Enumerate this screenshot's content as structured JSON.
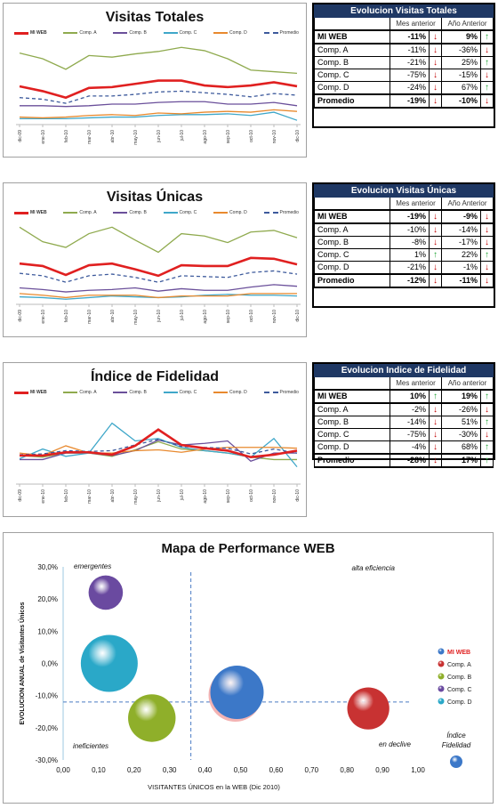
{
  "months": [
    "dic-09",
    "ene-10",
    "feb-10",
    "mar-10",
    "abr-10",
    "may-10",
    "jun-10",
    "jul-10",
    "ago-10",
    "sep-10",
    "oct-10",
    "nov-10",
    "dic-10"
  ],
  "legend_names": [
    "MI WEB",
    "Comp. A",
    "Comp. B",
    "Comp. C",
    "Comp. D",
    "Promedio"
  ],
  "series_colors": {
    "MI WEB": "#e02020",
    "Comp. A": "#8faa4e",
    "Comp. B": "#6a4f9a",
    "Comp. C": "#3fa7c9",
    "Comp. D": "#e8892e",
    "Promedio": "#3d5a9c"
  },
  "chart_data": [
    {
      "type": "line",
      "title": "Visitas Totales",
      "x": [
        "dic-09",
        "ene-10",
        "feb-10",
        "mar-10",
        "abr-10",
        "may-10",
        "jun-10",
        "jul-10",
        "ago-10",
        "sep-10",
        "oct-10",
        "nov-10",
        "dic-10"
      ],
      "ylim": [
        0,
        100
      ],
      "series": [
        {
          "name": "MI WEB",
          "values": [
            44,
            38,
            30,
            42,
            43,
            47,
            51,
            51,
            45,
            43,
            45,
            49,
            44
          ]
        },
        {
          "name": "Comp. A",
          "values": [
            85,
            78,
            65,
            82,
            80,
            84,
            87,
            92,
            88,
            78,
            64,
            62,
            60
          ]
        },
        {
          "name": "Comp. B",
          "values": [
            20,
            20,
            19,
            20,
            22,
            22,
            24,
            25,
            25,
            22,
            22,
            24,
            20
          ]
        },
        {
          "name": "Comp. C",
          "values": [
            4,
            4,
            4,
            5,
            6,
            6,
            8,
            9,
            9,
            10,
            8,
            12,
            2
          ]
        },
        {
          "name": "Comp. D",
          "values": [
            6,
            5,
            6,
            8,
            9,
            8,
            11,
            10,
            12,
            13,
            12,
            15,
            13
          ]
        },
        {
          "name": "Promedio",
          "values": [
            30,
            28,
            23,
            32,
            32,
            34,
            37,
            38,
            36,
            34,
            31,
            35,
            33
          ]
        }
      ]
    },
    {
      "type": "line",
      "title": "Visitas Únicas",
      "x": [
        "dic-09",
        "ene-10",
        "feb-10",
        "mar-10",
        "abr-10",
        "may-10",
        "jun-10",
        "jul-10",
        "ago-10",
        "sep-10",
        "oct-10",
        "nov-10",
        "dic-10"
      ],
      "ylim": [
        0,
        100
      ],
      "series": [
        {
          "name": "MI WEB",
          "values": [
            47,
            44,
            33,
            45,
            47,
            40,
            32,
            45,
            44,
            44,
            54,
            53,
            46
          ]
        },
        {
          "name": "Comp. A",
          "values": [
            92,
            74,
            67,
            84,
            92,
            76,
            61,
            84,
            81,
            73,
            86,
            88,
            79
          ]
        },
        {
          "name": "Comp. B",
          "values": [
            17,
            15,
            12,
            14,
            15,
            17,
            13,
            16,
            14,
            14,
            18,
            21,
            19
          ]
        },
        {
          "name": "Comp. C",
          "values": [
            6,
            5,
            3,
            5,
            7,
            6,
            5,
            6,
            8,
            9,
            8,
            8,
            7
          ]
        },
        {
          "name": "Comp. D",
          "values": [
            10,
            8,
            5,
            8,
            8,
            8,
            5,
            7,
            7,
            7,
            10,
            10,
            10
          ]
        },
        {
          "name": "Promedio",
          "values": [
            35,
            32,
            24,
            32,
            34,
            30,
            24,
            32,
            31,
            30,
            36,
            38,
            34
          ]
        }
      ]
    },
    {
      "type": "line",
      "title": "Índice de Fidelidad",
      "x": [
        "dic-09",
        "ene-10",
        "feb-10",
        "mar-10",
        "abr-10",
        "may-10",
        "jun-10",
        "jul-10",
        "ago-10",
        "sep-10",
        "oct-10",
        "nov-10",
        "dic-10"
      ],
      "ylim": [
        0,
        100
      ],
      "series": [
        {
          "name": "MI WEB",
          "values": [
            32,
            32,
            36,
            36,
            33,
            44,
            64,
            45,
            41,
            38,
            30,
            33,
            38
          ]
        },
        {
          "name": "Comp. A",
          "values": [
            32,
            30,
            35,
            35,
            31,
            39,
            49,
            40,
            38,
            35,
            30,
            27,
            27
          ]
        },
        {
          "name": "Comp. B",
          "values": [
            27,
            27,
            35,
            35,
            32,
            38,
            51,
            45,
            47,
            50,
            25,
            35,
            35
          ]
        },
        {
          "name": "Comp. C",
          "values": [
            28,
            40,
            31,
            35,
            72,
            50,
            53,
            42,
            38,
            35,
            30,
            53,
            18
          ]
        },
        {
          "name": "Comp. D",
          "values": [
            35,
            32,
            44,
            35,
            35,
            38,
            39,
            36,
            40,
            42,
            42,
            42,
            41
          ]
        },
        {
          "name": "Promedio",
          "values": [
            33,
            34,
            38,
            37,
            38,
            45,
            52,
            43,
            42,
            41,
            34,
            40,
            35
          ]
        }
      ]
    },
    {
      "type": "scatter",
      "title": "Mapa de Performance WEB",
      "xlabel": "VISITANTES ÚNICOS en la WEB (Dic 2010)",
      "ylabel": "EVOLUCION ANUAL de Visitantes Únicos",
      "xlim": [
        0,
        1
      ],
      "ylim": [
        -0.3,
        0.3
      ],
      "xticks": [
        "0,00",
        "0,10",
        "0,20",
        "0,30",
        "0,40",
        "0,50",
        "0,60",
        "0,70",
        "0,80",
        "0,90",
        "1,00"
      ],
      "yticks": [
        "30,0%",
        "20,0%",
        "10,0%",
        "0,0%",
        "-10,0%",
        "-20,0%",
        "-30,0%"
      ],
      "bubble_size_label": "Índice Fidelidad",
      "points": [
        {
          "name": "MI WEB",
          "x": 0.49,
          "y": -0.09,
          "size": 0.29,
          "color": "#3c78c8"
        },
        {
          "name": "Comp. A",
          "x": 0.86,
          "y": -0.14,
          "size": 0.18,
          "color": "#c83232"
        },
        {
          "name": "Comp. B",
          "x": 0.25,
          "y": -0.17,
          "size": 0.23,
          "color": "#8faf2a"
        },
        {
          "name": "Comp. C",
          "x": 0.12,
          "y": 0.22,
          "size": 0.12,
          "color": "#6a4aa0"
        },
        {
          "name": "Comp. D",
          "x": 0.13,
          "y": 0.0,
          "size": 0.33,
          "color": "#2aa8c8"
        }
      ],
      "ref_x": 0.36,
      "ref_y": -0.12,
      "quadrants": {
        "tl": "emergentes",
        "tr": "alta eficiencia",
        "bl": "ineficientes",
        "br": "en declive"
      }
    }
  ],
  "tables": [
    {
      "title": "Evolucion Visitas Totales",
      "col1": "Mes anterior",
      "col2": "Año Anterior",
      "rows": [
        {
          "name": "MI WEB",
          "m": "-11%",
          "md": "dn",
          "y": "9%",
          "yd": "up"
        },
        {
          "name": "Comp. A",
          "m": "-11%",
          "md": "dn",
          "y": "-36%",
          "yd": "dn"
        },
        {
          "name": "Comp. B",
          "m": "-21%",
          "md": "dn",
          "y": "25%",
          "yd": "up"
        },
        {
          "name": "Comp. C",
          "m": "-75%",
          "md": "dn",
          "y": "-15%",
          "yd": "dn"
        },
        {
          "name": "Comp. D",
          "m": "-24%",
          "md": "dn",
          "y": "67%",
          "yd": "up"
        },
        {
          "name": "Promedio",
          "m": "-19%",
          "md": "dn",
          "y": "-10%",
          "yd": "dn"
        }
      ]
    },
    {
      "title": "Evolucion Visitas Únicas",
      "col1": "Mes anterior",
      "col2": "Año Anterior",
      "rows": [
        {
          "name": "MI WEB",
          "m": "-19%",
          "md": "dn",
          "y": "-9%",
          "yd": "dn"
        },
        {
          "name": "Comp. A",
          "m": "-10%",
          "md": "dn",
          "y": "-14%",
          "yd": "dn"
        },
        {
          "name": "Comp. B",
          "m": "-8%",
          "md": "dn",
          "y": "-17%",
          "yd": "dn"
        },
        {
          "name": "Comp. C",
          "m": "1%",
          "md": "up",
          "y": "22%",
          "yd": "up"
        },
        {
          "name": "Comp. D",
          "m": "-21%",
          "md": "dn",
          "y": "-1%",
          "yd": "dn"
        },
        {
          "name": "Promedio",
          "m": "-12%",
          "md": "dn",
          "y": "-11%",
          "yd": "dn"
        }
      ]
    },
    {
      "title": "Evolucion Indice de Fidelidad",
      "col1": "Mes anterior",
      "col2": "Año anterior",
      "rows": [
        {
          "name": "MI WEB",
          "m": "10%",
          "md": "up",
          "y": "19%",
          "yd": "up"
        },
        {
          "name": "Comp. A",
          "m": "-2%",
          "md": "dn",
          "y": "-26%",
          "yd": "dn"
        },
        {
          "name": "Comp. B",
          "m": "-14%",
          "md": "dn",
          "y": "51%",
          "yd": "up"
        },
        {
          "name": "Comp. C",
          "m": "-75%",
          "md": "dn",
          "y": "-30%",
          "yd": "dn"
        },
        {
          "name": "Comp. D",
          "m": "-4%",
          "md": "dn",
          "y": "68%",
          "yd": "up"
        },
        {
          "name": "Promedio",
          "m": "-28%",
          "md": "dn",
          "y": "17%",
          "yd": "up"
        }
      ]
    }
  ]
}
